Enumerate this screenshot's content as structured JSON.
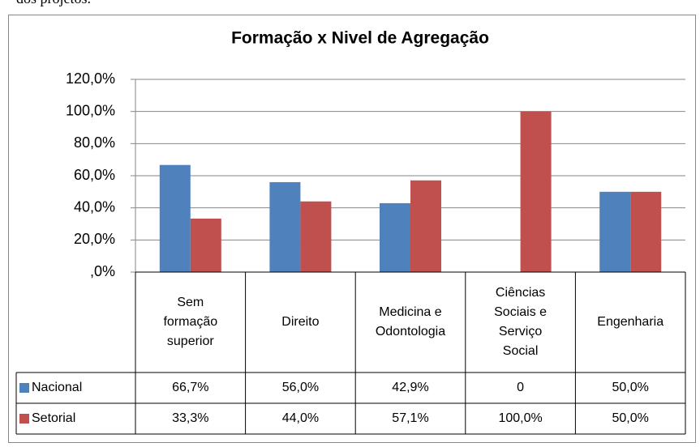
{
  "page_text": "dos projetos.",
  "chart_data": {
    "type": "bar",
    "title": "Formação x Nivel de Agregação",
    "categories": [
      "Sem formação superior",
      "Direito",
      "Medicina e Odontologia",
      "Ciências Sociais e Serviço Social",
      "Engenharia"
    ],
    "series": [
      {
        "name": "Nacional",
        "color": "#4f81bd",
        "values": [
          66.7,
          56.0,
          42.9,
          0,
          50.0
        ],
        "value_labels": [
          "66,7%",
          "56,0%",
          "42,9%",
          "0",
          "50,0%"
        ]
      },
      {
        "name": "Setorial",
        "color": "#c0504d",
        "values": [
          33.3,
          44.0,
          57.1,
          100.0,
          50.0
        ],
        "value_labels": [
          "33,3%",
          "44,0%",
          "57,1%",
          "100,0%",
          "50,0%"
        ]
      }
    ],
    "ylim": [
      0,
      120
    ],
    "yticks": [
      {
        "value": 0,
        "label": ",0%"
      },
      {
        "value": 20,
        "label": "20,0%"
      },
      {
        "value": 40,
        "label": "40,0%"
      },
      {
        "value": 60,
        "label": "60,0%"
      },
      {
        "value": 80,
        "label": "80,0%"
      },
      {
        "value": 100,
        "label": "100,0%"
      },
      {
        "value": 120,
        "label": "120,0%"
      }
    ],
    "grid": true,
    "data_table": true
  }
}
